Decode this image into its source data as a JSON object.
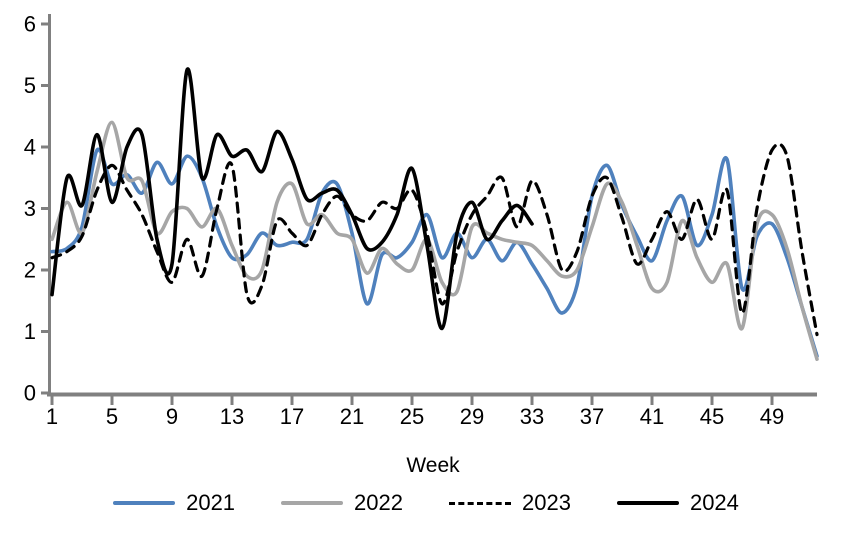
{
  "chart_data": {
    "type": "line",
    "title": "",
    "xlabel": "Week",
    "ylabel": "",
    "xlim": [
      1,
      52
    ],
    "ylim": [
      0,
      6
    ],
    "x_ticks": [
      1,
      5,
      9,
      13,
      17,
      21,
      25,
      29,
      33,
      37,
      41,
      45,
      49
    ],
    "y_ticks": [
      0,
      1,
      2,
      3,
      4,
      5,
      6
    ],
    "grid": false,
    "legend_position": "bottom",
    "axis_color": "#808080",
    "series": [
      {
        "name": "2021",
        "color": "#4F81BD",
        "style": "solid",
        "start_week": 1,
        "values": [
          2.3,
          2.35,
          2.7,
          3.95,
          3.4,
          3.55,
          3.25,
          3.75,
          3.4,
          3.85,
          3.5,
          2.7,
          2.2,
          2.25,
          2.6,
          2.4,
          2.45,
          2.5,
          3.25,
          3.4,
          2.6,
          1.45,
          2.25,
          2.2,
          2.45,
          2.9,
          2.2,
          2.6,
          2.2,
          2.5,
          2.15,
          2.45,
          2.1,
          1.7,
          1.3,
          1.75,
          3.2,
          3.7,
          3.05,
          2.55,
          2.15,
          2.8,
          3.2,
          2.4,
          2.9,
          3.8,
          1.7,
          2.55,
          2.75,
          2.2,
          1.4,
          0.6
        ]
      },
      {
        "name": "2022",
        "color": "#A6A6A6",
        "style": "solid",
        "start_week": 1,
        "values": [
          2.5,
          3.1,
          2.6,
          3.6,
          4.4,
          3.5,
          3.45,
          2.6,
          2.95,
          3.0,
          2.7,
          3.0,
          2.4,
          1.9,
          2.0,
          3.1,
          3.4,
          2.75,
          2.9,
          2.6,
          2.5,
          1.95,
          2.35,
          2.1,
          2.0,
          2.5,
          1.8,
          1.65,
          2.7,
          2.6,
          2.5,
          2.45,
          2.4,
          2.15,
          1.9,
          2.0,
          2.7,
          3.4,
          3.1,
          2.4,
          1.7,
          1.8,
          2.8,
          2.2,
          1.8,
          2.1,
          1.05,
          2.75,
          2.9,
          2.35,
          1.4,
          0.55
        ]
      },
      {
        "name": "2023",
        "color": "#000000",
        "style": "dashed",
        "start_week": 1,
        "values": [
          2.2,
          2.3,
          2.55,
          3.3,
          3.7,
          3.3,
          2.9,
          2.3,
          1.8,
          2.5,
          1.9,
          3.0,
          3.7,
          1.6,
          1.75,
          2.8,
          2.6,
          2.4,
          2.9,
          3.2,
          2.9,
          2.8,
          3.1,
          3.0,
          3.3,
          2.6,
          1.45,
          2.3,
          2.9,
          3.2,
          3.5,
          2.7,
          3.45,
          2.9,
          2.0,
          2.3,
          3.2,
          3.5,
          2.85,
          2.1,
          2.5,
          2.95,
          2.5,
          3.15,
          2.5,
          3.3,
          1.3,
          3.0,
          3.95,
          3.85,
          2.3,
          0.95
        ]
      },
      {
        "name": "2024",
        "color": "#000000",
        "style": "solid",
        "start_week": 1,
        "values": [
          1.6,
          3.5,
          3.05,
          4.2,
          3.1,
          4.0,
          4.2,
          2.5,
          2.1,
          5.25,
          3.5,
          4.2,
          3.85,
          3.95,
          3.6,
          4.25,
          3.8,
          3.15,
          3.25,
          3.3,
          2.9,
          2.35,
          2.45,
          2.9,
          3.65,
          2.4,
          1.05,
          2.6,
          3.1,
          2.5,
          2.8,
          3.05,
          2.75
        ]
      }
    ]
  }
}
